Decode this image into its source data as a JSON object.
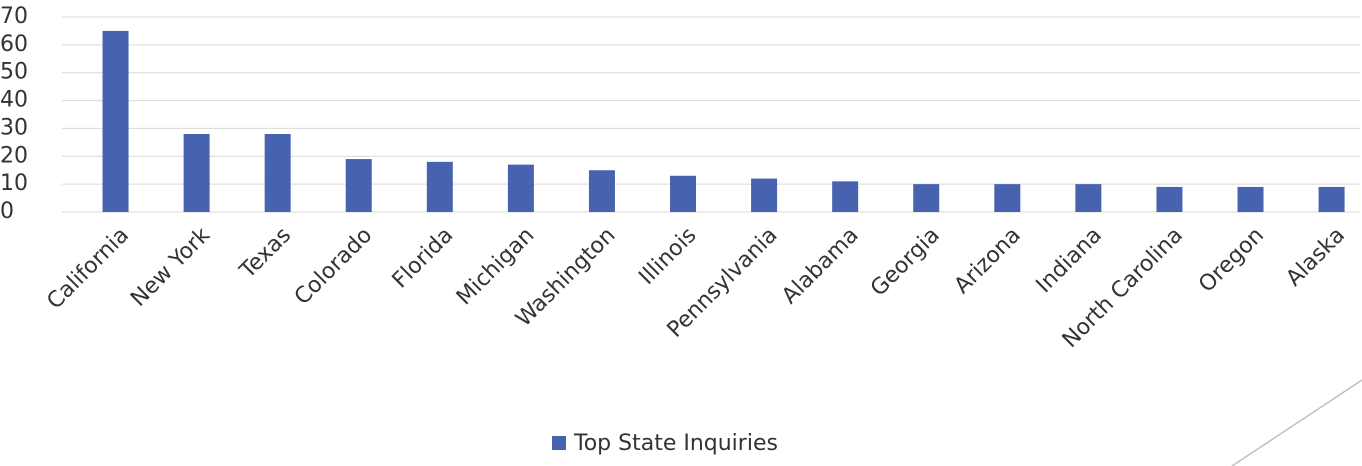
{
  "chart_data": {
    "type": "bar",
    "categories": [
      "California",
      "New York",
      "Texas",
      "Colorado",
      "Florida",
      "Michigan",
      "Washington",
      "Illinois",
      "Pennsylvania",
      "Alabama",
      "Georgia",
      "Arizona",
      "Indiana",
      "North Carolina",
      "Oregon",
      "Alaska"
    ],
    "series": [
      {
        "name": "Top State Inquiries",
        "color": "#4763b0",
        "values": [
          65,
          28,
          28,
          19,
          18,
          17,
          15,
          13,
          12,
          11,
          10,
          10,
          10,
          9,
          9,
          9
        ]
      }
    ],
    "ylim": [
      0,
      70
    ],
    "yticks": [
      0,
      10,
      20,
      30,
      40,
      50,
      60,
      70
    ],
    "grid": true,
    "legend": "bottom"
  }
}
